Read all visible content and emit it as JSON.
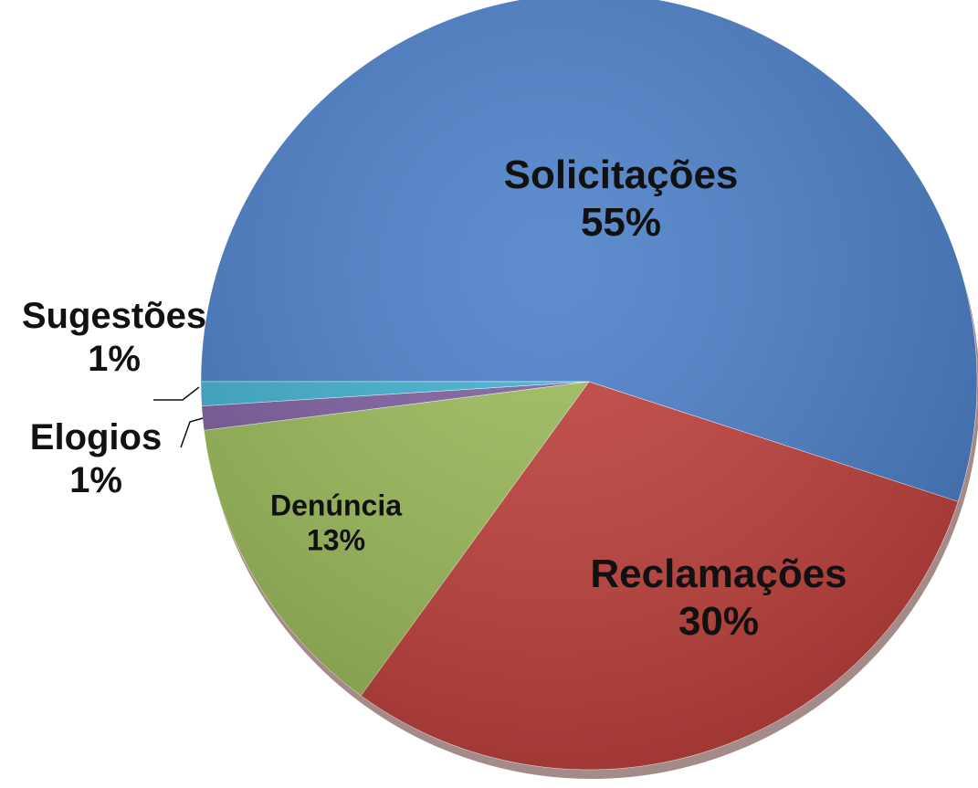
{
  "chart_data": {
    "type": "pie",
    "categories": [
      "Solicitações",
      "Reclamações",
      "Denúncia",
      "Elogios",
      "Sugestões"
    ],
    "values": [
      55,
      30,
      13,
      1,
      1
    ],
    "value_labels": [
      "55%",
      "30%",
      "13%",
      "1%",
      "1%"
    ],
    "colors": [
      "#4a7ec8",
      "#c0403c",
      "#9bbb59",
      "#7e5ea0",
      "#3fb0d0"
    ]
  }
}
